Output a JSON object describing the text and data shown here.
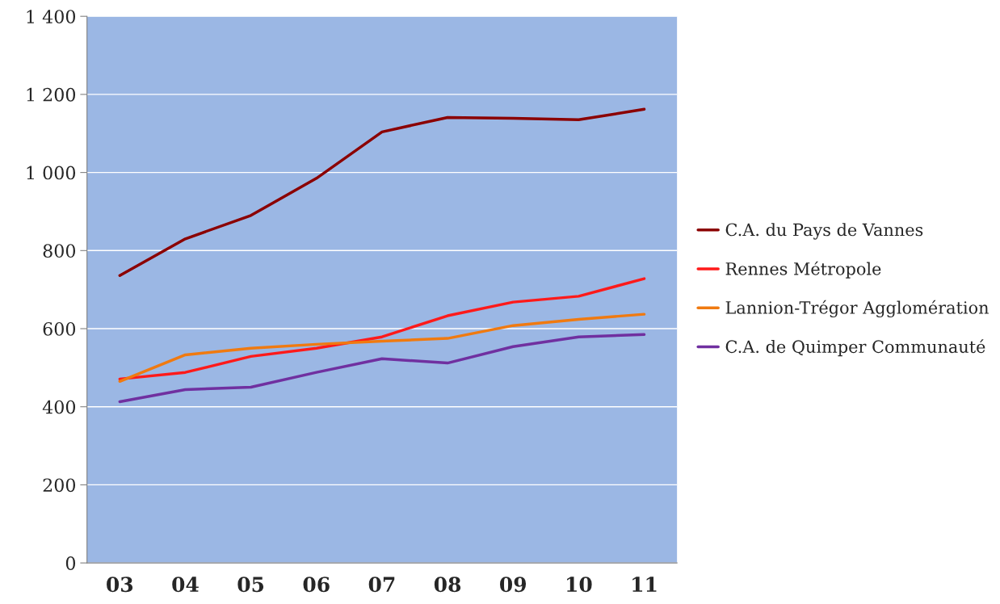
{
  "chart_data": {
    "type": "line",
    "categories": [
      "03",
      "04",
      "05",
      "06",
      "07",
      "08",
      "09",
      "10",
      "11"
    ],
    "series": [
      {
        "name": "C.A. du Pays de Vannes",
        "color": "#8b0000",
        "values": [
          736,
          830,
          890,
          985,
          1104,
          1141,
          1139,
          1135,
          1162
        ]
      },
      {
        "name": "Rennes Métropole",
        "color": "#ff1a1a",
        "values": [
          471,
          488,
          529,
          550,
          579,
          633,
          668,
          683,
          728
        ]
      },
      {
        "name": "Lannion-Trégor Agglomération",
        "color": "#f07a10",
        "values": [
          465,
          533,
          550,
          560,
          568,
          575,
          608,
          624,
          637
        ]
      },
      {
        "name": "C.A. de Quimper Communauté",
        "color": "#7030a0",
        "values": [
          413,
          444,
          450,
          488,
          523,
          512,
          554,
          579,
          585
        ]
      }
    ],
    "ylim": [
      0,
      1400
    ],
    "yticks": [
      0,
      200,
      400,
      600,
      800,
      {
        "value": 1000,
        "label": "1 000"
      },
      {
        "value": 1200,
        "label": "1 200"
      },
      {
        "value": 1400,
        "label": "1 400"
      }
    ],
    "grid": "y",
    "legend": "right",
    "marker": "none",
    "line_style": "solid"
  }
}
